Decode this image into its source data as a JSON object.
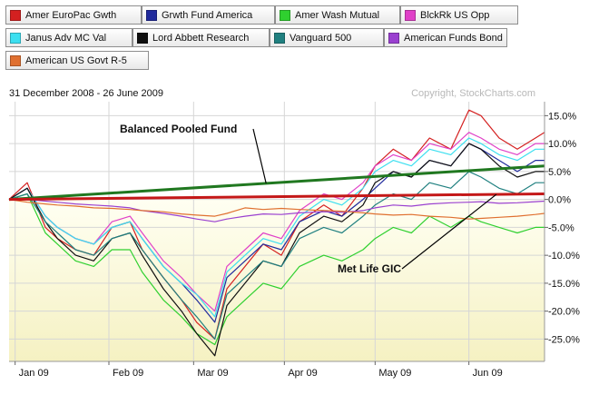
{
  "legend": [
    {
      "name": "Amer EuroPac Gwth",
      "color": "#d42020"
    },
    {
      "name": "Grwth Fund America",
      "color": "#202a9c"
    },
    {
      "name": "Amer Wash Mutual",
      "color": "#2fd02f"
    },
    {
      "name": "BlckRk US Opp",
      "color": "#e040c8"
    },
    {
      "name": "Janus Adv MC Val",
      "color": "#3cdff0"
    },
    {
      "name": "Lord Abbett Research",
      "color": "#101010"
    },
    {
      "name": "Vanguard 500",
      "color": "#208080"
    },
    {
      "name": "American Funds Bond",
      "color": "#9a40d0"
    },
    {
      "name": "American US Govt R-5",
      "color": "#e07030"
    }
  ],
  "date_range": "31 December 2008 - 26 June 2009",
  "copyright": "Copyright, StockCharts.com",
  "chart_data": {
    "type": "line",
    "x": [
      "2008-12-31",
      "2009-01-06",
      "2009-01-12",
      "2009-01-16",
      "2009-01-22",
      "2009-01-28",
      "2009-02-03",
      "2009-02-09",
      "2009-02-13",
      "2009-02-20",
      "2009-02-26",
      "2009-03-03",
      "2009-03-09",
      "2009-03-13",
      "2009-03-19",
      "2009-03-25",
      "2009-03-31",
      "2009-04-06",
      "2009-04-14",
      "2009-04-20",
      "2009-04-27",
      "2009-05-01",
      "2009-05-07",
      "2009-05-13",
      "2009-05-19",
      "2009-05-26",
      "2009-06-01",
      "2009-06-05",
      "2009-06-11",
      "2009-06-17",
      "2009-06-23",
      "2009-06-26"
    ],
    "x_tick_labels": [
      "Jan 09",
      "Feb 09",
      "Mar 09",
      "Apr 09",
      "May 09",
      "Jun 09"
    ],
    "x_tick_dates": [
      "2009-01-02",
      "2009-02-02",
      "2009-03-02",
      "2009-04-01",
      "2009-05-01",
      "2009-06-01"
    ],
    "ylim": [
      -29,
      17.5
    ],
    "y_ticks": [
      -25,
      -20,
      -15,
      -10,
      -5,
      0,
      5,
      10,
      15
    ],
    "y_tick_labels": [
      "-25.0%",
      "-20.0%",
      "-15.0%",
      "-10.0%",
      "-5.0%",
      "0.0%",
      "5.0%",
      "10.0%",
      "15.0%"
    ],
    "grid": true,
    "series": [
      {
        "name": "Amer EuroPac Gwth",
        "color": "#d42020",
        "values": [
          0,
          3,
          -5,
          -7,
          -9,
          -10,
          -5,
          -4,
          -9,
          -14,
          -18,
          -22,
          -25,
          -16,
          -12,
          -8,
          -10,
          -4,
          -1,
          -3,
          2,
          6,
          9,
          7,
          11,
          9,
          16,
          15,
          11,
          9,
          11,
          12
        ]
      },
      {
        "name": "Grwth Fund America",
        "color": "#202a9c",
        "values": [
          0,
          2,
          -3,
          -5,
          -7,
          -8,
          -5,
          -4,
          -7,
          -12,
          -15,
          -18,
          -22,
          -14,
          -11,
          -8,
          -9,
          -4,
          -2,
          -3,
          0,
          2,
          5,
          4,
          7,
          6,
          10,
          9,
          7,
          5,
          7,
          7
        ]
      },
      {
        "name": "Amer Wash Mutual",
        "color": "#2fd02f",
        "values": [
          0,
          1,
          -6,
          -8,
          -11,
          -12,
          -9,
          -9,
          -13,
          -18,
          -21,
          -24,
          -26,
          -21,
          -18,
          -15,
          -16,
          -12,
          -10,
          -11,
          -9,
          -7,
          -5,
          -6,
          -3,
          -5,
          -3,
          -4,
          -5,
          -6,
          -5,
          -5
        ]
      },
      {
        "name": "BlckRk US Opp",
        "color": "#e040c8",
        "values": [
          0,
          2,
          -3,
          -5,
          -7,
          -8,
          -4,
          -3,
          -6,
          -11,
          -14,
          -17,
          -20,
          -12,
          -9,
          -6,
          -7,
          -2,
          1,
          0,
          3,
          6,
          8,
          7,
          10,
          9,
          12,
          11,
          9,
          8,
          10,
          10
        ]
      },
      {
        "name": "Janus Adv MC Val",
        "color": "#3cdff0",
        "values": [
          0,
          2,
          -3,
          -5,
          -7,
          -8,
          -5,
          -4,
          -7,
          -12,
          -15,
          -17,
          -21,
          -13,
          -10,
          -7,
          -8,
          -3,
          0,
          -1,
          2,
          5,
          7,
          6,
          9,
          8,
          11,
          10,
          8,
          7,
          9,
          9
        ]
      },
      {
        "name": "Lord Abbett Research",
        "color": "#101010",
        "values": [
          0,
          2,
          -4,
          -7,
          -10,
          -11,
          -7,
          -6,
          -10,
          -16,
          -20,
          -24,
          -28,
          -19,
          -15,
          -11,
          -12,
          -6,
          -3,
          -4,
          -1,
          3,
          5,
          4,
          7,
          6,
          10,
          9,
          6,
          4,
          5,
          5
        ]
      },
      {
        "name": "Vanguard 500",
        "color": "#208080",
        "values": [
          0,
          1,
          -4,
          -6,
          -9,
          -10,
          -7,
          -6,
          -9,
          -14,
          -18,
          -21,
          -25,
          -17,
          -14,
          -11,
          -12,
          -7,
          -5,
          -6,
          -3,
          -1,
          1,
          0,
          3,
          2,
          5,
          4,
          2,
          1,
          3,
          3
        ]
      },
      {
        "name": "American Funds Bond",
        "color": "#9a40d0",
        "values": [
          0,
          0,
          -0.3,
          -0.5,
          -0.8,
          -1,
          -1.2,
          -1.5,
          -2,
          -2.5,
          -3,
          -3.5,
          -4,
          -3.5,
          -3,
          -2.6,
          -2.7,
          -2.4,
          -2.2,
          -2.3,
          -2,
          -1.5,
          -1,
          -1.2,
          -0.8,
          -0.6,
          -0.5,
          -0.4,
          -0.7,
          -0.6,
          -0.4,
          -0.3
        ]
      },
      {
        "name": "American US Govt R-5",
        "color": "#e07030",
        "values": [
          0,
          -0.5,
          -0.8,
          -1,
          -1.2,
          -1.5,
          -1.6,
          -1.8,
          -2,
          -2.2,
          -2.6,
          -2.8,
          -3,
          -2.5,
          -1.5,
          -1.8,
          -1.6,
          -1.8,
          -2,
          -2.1,
          -2.4,
          -2.6,
          -2.8,
          -2.7,
          -3,
          -3.2,
          -3.5,
          -3.4,
          -3.2,
          -3,
          -2.7,
          -2.5
        ]
      }
    ],
    "reference_lines": [
      {
        "name": "Balanced Pooled Fund",
        "color": "#207820",
        "x": [
          "2008-12-31",
          "2009-06-26"
        ],
        "values": [
          0,
          6
        ]
      },
      {
        "name": "Met Life GIC",
        "color": "#c41818",
        "x": [
          "2008-12-31",
          "2009-06-26"
        ],
        "values": [
          0,
          1
        ]
      }
    ],
    "annotations": [
      {
        "text": "Balanced Pooled Fund",
        "target": "Balanced Pooled Fund"
      },
      {
        "text": "Met Life GIC",
        "target": "Met Life GIC"
      }
    ]
  }
}
